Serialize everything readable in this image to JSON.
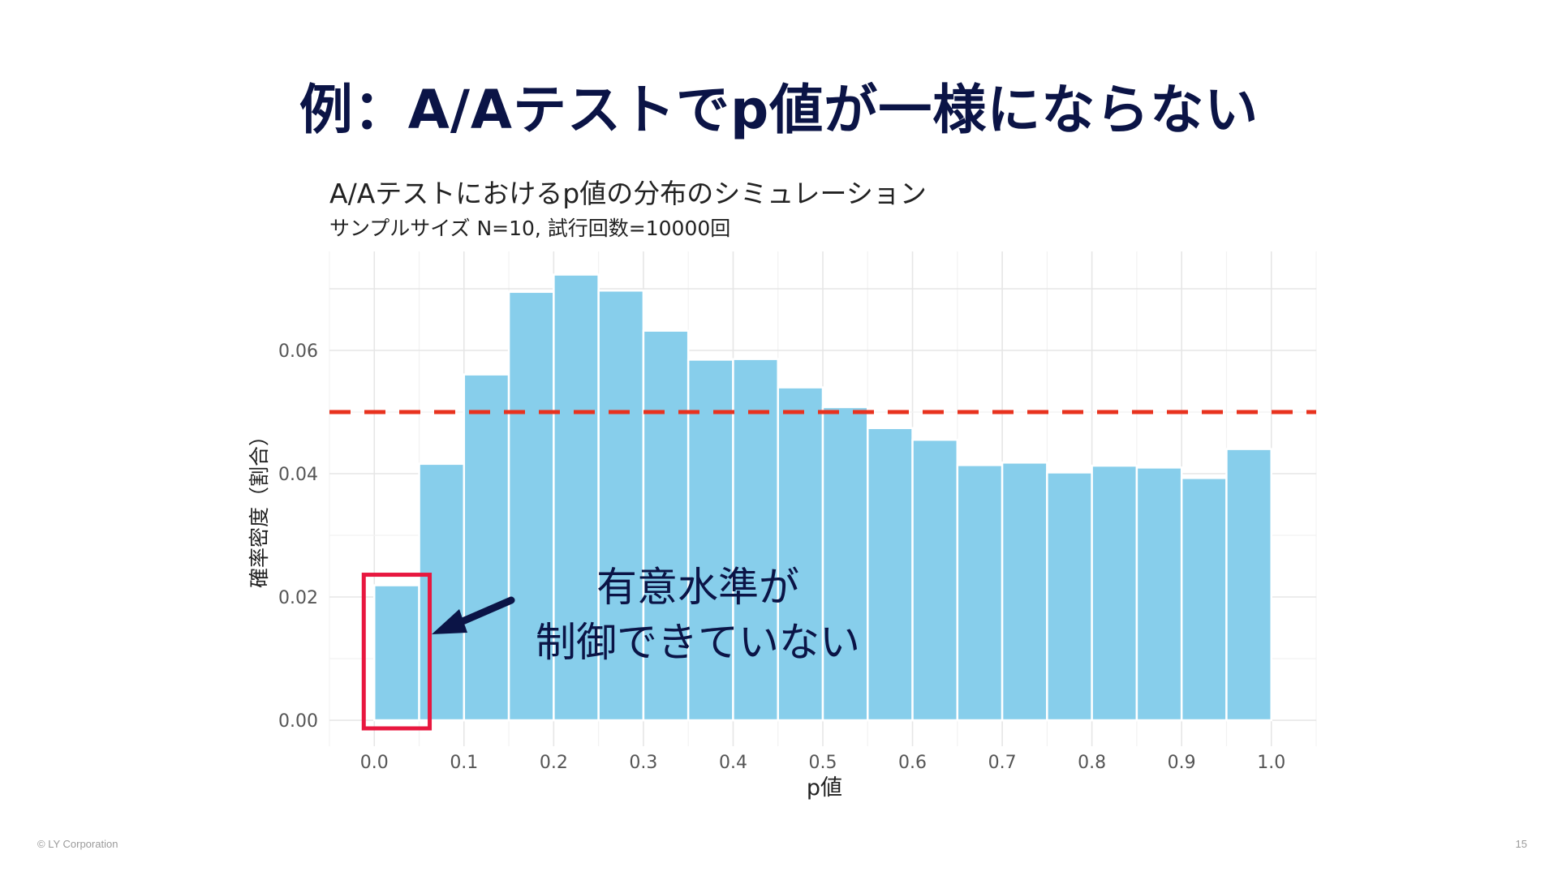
{
  "slide": {
    "title": "例：A/Aテストでp値が一様にならない",
    "footer_left": "© LY Corporation",
    "page_number": "15"
  },
  "annotation": {
    "line1": "有意水準が",
    "line2": "制御できていない"
  },
  "colors": {
    "bar": "#87ceeb",
    "reference_line": "#e8321e",
    "highlight_box": "#e8173f",
    "arrow": "#0b1446",
    "title": "#0b1446"
  },
  "chart_data": {
    "type": "bar",
    "title": "A/Aテストにおけるp値の分布のシミュレーション",
    "subtitle": "サンプルサイズ N=10, 試行回数=10000回",
    "xlabel": "p値",
    "ylabel": "確率密度（割合）",
    "x_ticks": [
      "0.0",
      "0.1",
      "0.2",
      "0.3",
      "0.4",
      "0.5",
      "0.6",
      "0.7",
      "0.8",
      "0.9",
      "1.0"
    ],
    "y_ticks": [
      "0.00",
      "0.02",
      "0.04",
      "0.06"
    ],
    "xlim": [
      -0.05,
      1.05
    ],
    "ylim": [
      0,
      0.076
    ],
    "bin_width": 0.05,
    "bin_starts": [
      0.0,
      0.05,
      0.1,
      0.15,
      0.2,
      0.25,
      0.3,
      0.35,
      0.4,
      0.45,
      0.5,
      0.55,
      0.6,
      0.65,
      0.7,
      0.75,
      0.8,
      0.85,
      0.9,
      0.95
    ],
    "values": [
      0.0219,
      0.0416,
      0.0561,
      0.0695,
      0.0723,
      0.0697,
      0.0632,
      0.0585,
      0.0586,
      0.054,
      0.0508,
      0.0474,
      0.0455,
      0.0414,
      0.0418,
      0.0402,
      0.0413,
      0.041,
      0.0393,
      0.044
    ],
    "reference_line": {
      "y": 0.05,
      "style": "dashed"
    },
    "highlight_bin_index": 0,
    "grid": true
  }
}
